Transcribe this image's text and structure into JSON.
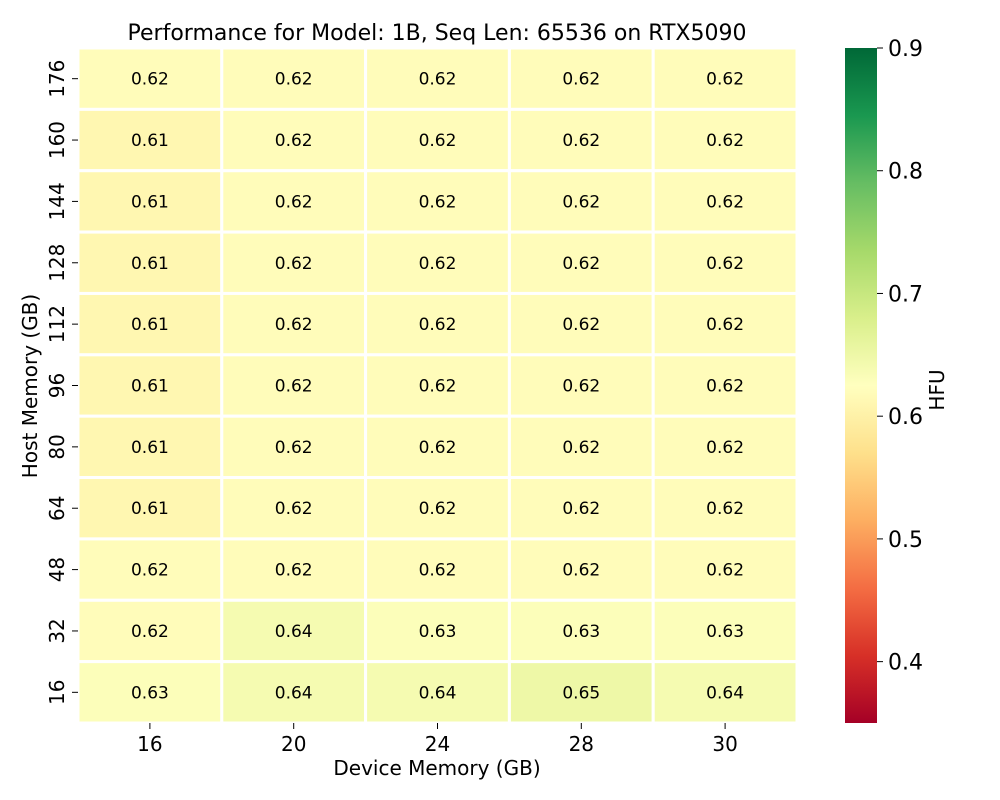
{
  "chart_data": {
    "type": "heatmap",
    "title": "Performance for Model: 1B, Seq Len: 65536 on RTX5090",
    "xlabel": "Device Memory (GB)",
    "ylabel": "Host Memory (GB)",
    "x_categories": [
      "16",
      "20",
      "24",
      "28",
      "30"
    ],
    "y_categories": [
      "176",
      "160",
      "144",
      "128",
      "112",
      "96",
      "80",
      "64",
      "48",
      "32",
      "16"
    ],
    "values": [
      [
        0.62,
        0.62,
        0.62,
        0.62,
        0.62
      ],
      [
        0.61,
        0.62,
        0.62,
        0.62,
        0.62
      ],
      [
        0.61,
        0.62,
        0.62,
        0.62,
        0.62
      ],
      [
        0.61,
        0.62,
        0.62,
        0.62,
        0.62
      ],
      [
        0.61,
        0.62,
        0.62,
        0.62,
        0.62
      ],
      [
        0.61,
        0.62,
        0.62,
        0.62,
        0.62
      ],
      [
        0.61,
        0.62,
        0.62,
        0.62,
        0.62
      ],
      [
        0.61,
        0.62,
        0.62,
        0.62,
        0.62
      ],
      [
        0.62,
        0.62,
        0.62,
        0.62,
        0.62
      ],
      [
        0.62,
        0.64,
        0.63,
        0.63,
        0.63
      ],
      [
        0.63,
        0.64,
        0.64,
        0.65,
        0.64
      ]
    ],
    "colorbar": {
      "label": "HFU",
      "vmin": 0.35,
      "vmax": 0.9,
      "ticks": [
        0.4,
        0.5,
        0.6,
        0.7,
        0.8,
        0.9
      ],
      "tick_labels": [
        "0.4",
        "0.5",
        "0.6",
        "0.7",
        "0.8",
        "0.9"
      ],
      "colormap": "RdYlGn"
    },
    "colormap_stops": [
      "#a50026",
      "#d73027",
      "#f46d43",
      "#fdae61",
      "#fee08b",
      "#ffffbf",
      "#d9ef8b",
      "#a6d96a",
      "#66bd63",
      "#1a9850",
      "#006837"
    ],
    "cell_border_color": "#ffffff"
  }
}
